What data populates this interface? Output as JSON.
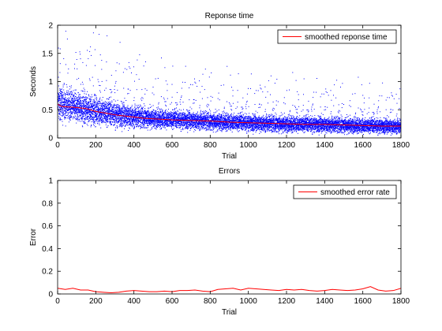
{
  "colors": {
    "scatter": "#0000ff",
    "smooth": "#ff0000",
    "axes": "#000000",
    "background": "#ffffff"
  },
  "chart_data": [
    {
      "type": "scatter",
      "title": "Reponse time",
      "xlabel": "Trial",
      "ylabel": "Seconds",
      "xlim": [
        0,
        1800
      ],
      "ylim": [
        0,
        2
      ],
      "xticks": [
        0,
        200,
        400,
        600,
        800,
        1000,
        1200,
        1400,
        1600,
        1800
      ],
      "yticks": [
        0,
        0.5,
        1,
        1.5,
        2
      ],
      "legend_position": "top-right",
      "grid": false,
      "series": [
        {
          "name": "",
          "style": "points",
          "color": "#0000ff",
          "trend": [
            [
              0,
              0.62
            ],
            [
              50,
              0.58
            ],
            [
              100,
              0.55
            ],
            [
              200,
              0.48
            ],
            [
              300,
              0.42
            ],
            [
              400,
              0.38
            ],
            [
              500,
              0.35
            ],
            [
              600,
              0.33
            ],
            [
              800,
              0.3
            ],
            [
              1000,
              0.27
            ],
            [
              1200,
              0.25
            ],
            [
              1400,
              0.24
            ],
            [
              1600,
              0.22
            ],
            [
              1800,
              0.21
            ]
          ],
          "spread": [
            [
              0,
              0.14
            ],
            [
              200,
              0.12
            ],
            [
              500,
              0.08
            ],
            [
              1000,
              0.07
            ],
            [
              1800,
              0.06
            ]
          ]
        },
        {
          "name": "smoothed reponse time",
          "style": "line",
          "color": "#ff0000",
          "x": [
            0,
            20,
            50,
            100,
            150,
            200,
            250,
            300,
            350,
            400,
            450,
            500,
            550,
            600,
            700,
            800,
            900,
            1000,
            1100,
            1200,
            1300,
            1400,
            1500,
            1600,
            1700,
            1800
          ],
          "y": [
            0.6,
            0.56,
            0.55,
            0.54,
            0.52,
            0.47,
            0.44,
            0.41,
            0.39,
            0.37,
            0.35,
            0.34,
            0.33,
            0.32,
            0.31,
            0.3,
            0.28,
            0.27,
            0.26,
            0.25,
            0.24,
            0.24,
            0.23,
            0.22,
            0.21,
            0.21
          ]
        }
      ]
    },
    {
      "type": "line",
      "title": "Errors",
      "xlabel": "Trial",
      "ylabel": "Error",
      "xlim": [
        0,
        1800
      ],
      "ylim": [
        0,
        1
      ],
      "xticks": [
        0,
        200,
        400,
        600,
        800,
        1000,
        1200,
        1400,
        1600,
        1800
      ],
      "yticks": [
        0,
        0.2,
        0.4,
        0.6,
        0.8,
        1
      ],
      "legend_position": "top-right",
      "grid": false,
      "series": [
        {
          "name": "smoothed error rate",
          "color": "#ff0000",
          "x": [
            0,
            40,
            80,
            120,
            160,
            200,
            240,
            280,
            320,
            360,
            400,
            440,
            480,
            520,
            560,
            600,
            640,
            680,
            720,
            760,
            800,
            840,
            880,
            920,
            960,
            1000,
            1040,
            1080,
            1120,
            1160,
            1200,
            1240,
            1280,
            1320,
            1360,
            1400,
            1440,
            1480,
            1520,
            1560,
            1600,
            1640,
            1680,
            1720,
            1760,
            1800
          ],
          "y": [
            0.05,
            0.04,
            0.05,
            0.035,
            0.035,
            0.02,
            0.015,
            0.01,
            0.015,
            0.025,
            0.03,
            0.025,
            0.02,
            0.02,
            0.025,
            0.02,
            0.03,
            0.03,
            0.035,
            0.025,
            0.02,
            0.04,
            0.045,
            0.05,
            0.035,
            0.05,
            0.045,
            0.04,
            0.035,
            0.03,
            0.04,
            0.035,
            0.04,
            0.03,
            0.025,
            0.03,
            0.04,
            0.035,
            0.03,
            0.035,
            0.045,
            0.065,
            0.035,
            0.025,
            0.03,
            0.05
          ]
        }
      ]
    }
  ]
}
